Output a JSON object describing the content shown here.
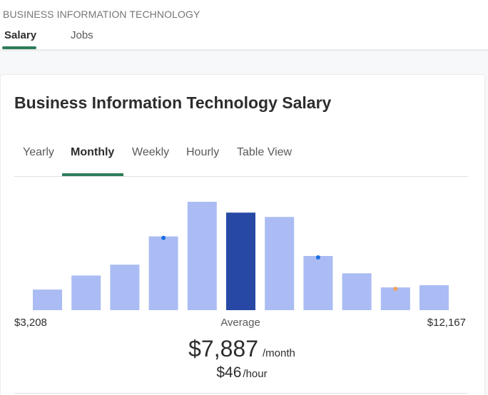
{
  "header": {
    "breadcrumb": "BUSINESS INFORMATION TECHNOLOGY",
    "tabs": [
      {
        "label": "Salary",
        "active": true
      },
      {
        "label": "Jobs",
        "active": false
      }
    ]
  },
  "card": {
    "title": "Business Information Technology Salary",
    "period_tabs": [
      {
        "label": "Yearly",
        "active": false
      },
      {
        "label": "Monthly",
        "active": true
      },
      {
        "label": "Weekly",
        "active": false
      },
      {
        "label": "Hourly",
        "active": false
      },
      {
        "label": "Table View",
        "active": false
      }
    ],
    "range_min": "$3,208",
    "range_avg_label": "Average",
    "range_max": "$12,167",
    "monthly_amount": "$7,887",
    "monthly_unit": "/month",
    "hourly_amount": "$46",
    "hourly_unit": "/hour"
  },
  "colors": {
    "accent_green": "#2e7d5b",
    "bar_light": "#aabcf3",
    "bar_highlight": "#2848a5",
    "marker_blue": "#1a6fe0",
    "marker_orange": "#f4a259"
  },
  "chart_data": {
    "type": "bar",
    "x_range": [
      3208,
      12167
    ],
    "average_bin_index": 5,
    "values": [
      19,
      32,
      42,
      68,
      100,
      90,
      86,
      50,
      34,
      21,
      23
    ],
    "markers": [
      {
        "bin": 3,
        "level": 68,
        "color": "blue"
      },
      {
        "bin": 7,
        "level": 50,
        "color": "blue"
      },
      {
        "bin": 9,
        "level": 21,
        "color": "orange"
      }
    ]
  }
}
